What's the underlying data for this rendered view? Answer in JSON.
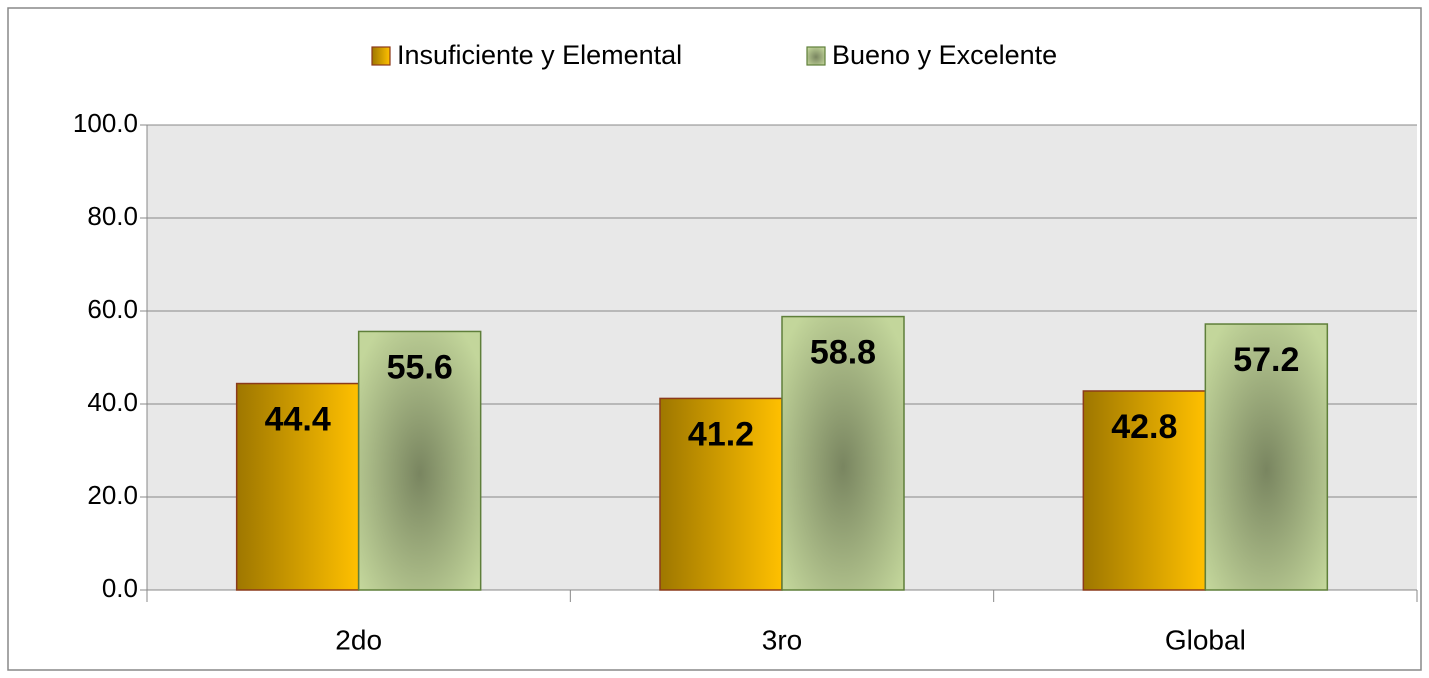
{
  "chart_data": {
    "type": "bar",
    "categories": [
      "2do",
      "3ro",
      "Global"
    ],
    "series": [
      {
        "name": "Insuficiente y Elemental",
        "color": "#ffc000",
        "values": [
          44.4,
          41.2,
          42.8
        ]
      },
      {
        "name": "Bueno y Excelente",
        "color": "#c3d69b",
        "values": [
          55.6,
          58.8,
          57.2
        ]
      }
    ],
    "ylim": [
      0,
      100
    ],
    "yticks": [
      {
        "value": 0,
        "label": "0.0"
      },
      {
        "value": 20,
        "label": "20.0"
      },
      {
        "value": 40,
        "label": "40.0"
      },
      {
        "value": 60,
        "label": "60.0"
      },
      {
        "value": 80,
        "label": "80.0"
      },
      {
        "value": 100,
        "label": "100.0"
      }
    ],
    "grid": true,
    "legend": "top"
  }
}
